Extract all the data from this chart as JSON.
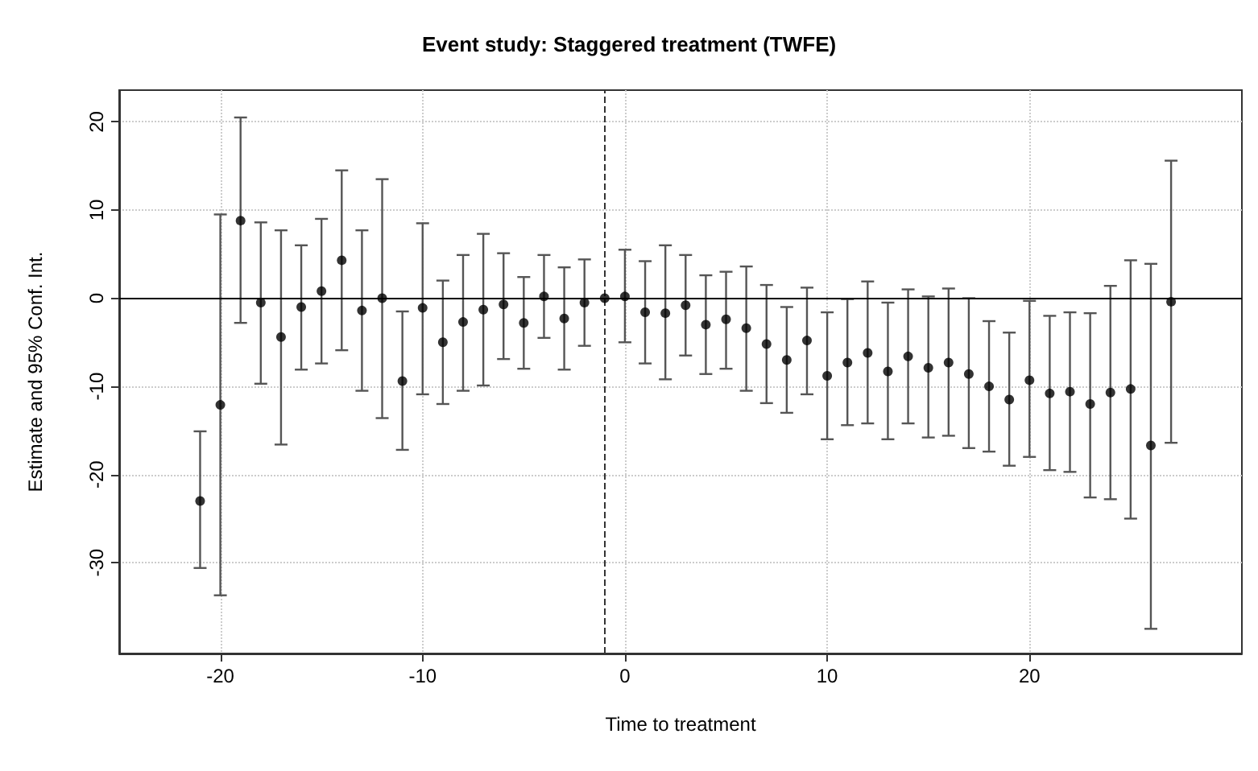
{
  "chart_data": {
    "type": "scatter",
    "title": "Event study: Staggered treatment (TWFE)",
    "xlabel": "Time to treatment",
    "ylabel": "Estimate and 95% Conf. Int.",
    "x": [
      -21,
      -20,
      -19,
      -18,
      -17,
      -16,
      -15,
      -14,
      -13,
      -12,
      -11,
      -10,
      -9,
      -8,
      -7,
      -6,
      -5,
      -4,
      -3,
      -2,
      -1,
      0,
      1,
      2,
      3,
      4,
      5,
      6,
      7,
      8,
      9,
      10,
      11,
      12,
      13,
      14,
      15,
      16,
      17,
      18,
      19,
      20,
      21,
      22,
      23,
      24,
      25,
      26,
      27
    ],
    "series": [
      {
        "color": "#000000",
        "values": [
          -23,
          -12.1,
          8.8,
          -0.5,
          -4.4,
          -1,
          0.8,
          4.3,
          -1.4,
          0,
          -9.4,
          -1.1,
          -5,
          -2.7,
          -1.3,
          -0.7,
          -2.8,
          0.2,
          -2.3,
          -0.5,
          0,
          0.2,
          -1.6,
          -1.7,
          -0.8,
          -3,
          -2.4,
          -3.4,
          -5.2,
          -7,
          -4.8,
          -8.8,
          -7.3,
          -6.2,
          -8.3,
          -6.6,
          -7.9,
          -7.3,
          -8.6,
          -10,
          -11.5,
          -9.3,
          -10.8,
          -10.6,
          -12,
          -10.7,
          -10.3,
          -16.7,
          -0.4
        ],
        "errors": [
          [
            -30.6,
            -15.1
          ],
          [
            -33.7,
            9.5
          ],
          [
            -2.8,
            20.5
          ],
          [
            -9.7,
            8.6
          ],
          [
            -16.6,
            7.7
          ],
          [
            -8.1,
            6
          ],
          [
            -7.4,
            9
          ],
          [
            -5.9,
            14.5
          ],
          [
            -10.5,
            7.7
          ],
          [
            -13.6,
            13.5
          ],
          [
            -17.2,
            -1.5
          ],
          [
            -10.9,
            8.5
          ],
          [
            -12,
            2
          ],
          [
            -10.5,
            4.9
          ],
          [
            -9.9,
            7.3
          ],
          [
            -6.9,
            5.1
          ],
          [
            -8,
            2.4
          ],
          [
            -4.5,
            4.9
          ],
          [
            -8.1,
            3.5
          ],
          [
            -5.4,
            4.4
          ],
          null,
          [
            -5,
            5.5
          ],
          [
            -7.4,
            4.2
          ],
          [
            -9.2,
            6
          ],
          [
            -6.5,
            4.9
          ],
          [
            -8.6,
            2.6
          ],
          [
            -8,
            3
          ],
          [
            -10.5,
            3.6
          ],
          [
            -11.9,
            1.5
          ],
          [
            -13,
            -1
          ],
          [
            -10.9,
            1.2
          ],
          [
            -16,
            -1.6
          ],
          [
            -14.4,
            -0.1
          ],
          [
            -14.2,
            1.9
          ],
          [
            -16,
            -0.5
          ],
          [
            -14.2,
            1
          ],
          [
            -15.8,
            0.2
          ],
          [
            -15.6,
            1.1
          ],
          [
            -17,
            0
          ],
          [
            -17.4,
            -2.6
          ],
          [
            -19,
            -3.9
          ],
          [
            -18,
            -0.3
          ],
          [
            -19.5,
            -2
          ],
          [
            -19.7,
            -1.6
          ],
          [
            -22.6,
            -1.7
          ],
          [
            -22.8,
            1.4
          ],
          [
            -25,
            4.3
          ],
          [
            -37.5,
            3.9
          ],
          [
            -16.4,
            15.6
          ]
        ]
      }
    ],
    "xlim": [
      -25,
      30.5
    ],
    "xticks": [
      -20,
      -10,
      0,
      10,
      20
    ],
    "ylim": [
      -40.3,
      23.6
    ],
    "yticks": [
      -30,
      -20,
      -10,
      0,
      10,
      20
    ],
    "grid": true,
    "marker": "circle",
    "ref_lines": [
      {
        "axis": "y",
        "value": 0,
        "line_style": "solid",
        "color": "#000000"
      },
      {
        "axis": "x",
        "value": -1,
        "line_style": "dashed",
        "color": "#333333"
      }
    ]
  }
}
